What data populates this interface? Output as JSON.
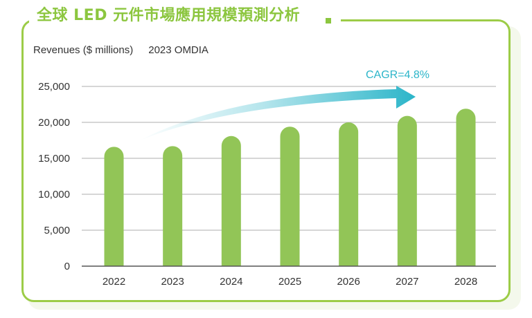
{
  "header": {
    "title": "全球 LED 元件市場應用規模預測分析",
    "accent_color": "#8cc63f"
  },
  "subtitle": {
    "units": "Revenues ($ millions)",
    "source": "2023 OMDIA"
  },
  "chart_data": {
    "type": "bar",
    "title": "全球 LED 元件市場應用規模預測分析",
    "ylabel": "Revenues ($ millions)",
    "xlabel": "",
    "source": "2023 OMDIA",
    "categories": [
      "2022",
      "2023",
      "2024",
      "2025",
      "2026",
      "2027",
      "2028"
    ],
    "values": [
      16600,
      16700,
      18100,
      19400,
      20000,
      20900,
      21900
    ],
    "ylim": [
      0,
      25000
    ],
    "yticks": [
      0,
      5000,
      10000,
      15000,
      20000,
      25000
    ],
    "ytick_labels": [
      "0",
      "5,000",
      "10,000",
      "15,000",
      "20,000",
      "25,000"
    ],
    "grid": true,
    "legend": "none",
    "bar_color": "#92c557",
    "annotations": [
      {
        "type": "trend-arrow",
        "text": "CAGR=4.8%",
        "color": "#2bb5c9"
      }
    ]
  }
}
